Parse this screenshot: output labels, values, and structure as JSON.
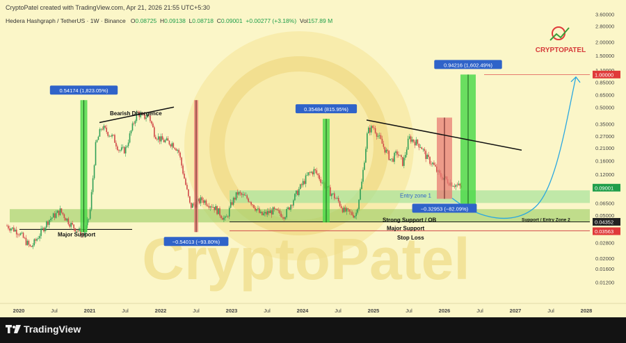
{
  "header": {
    "created_by": "CryptoPatel created with TradingView.com, Apr 21, 2026 21:55 UTC+5:30",
    "symbol": "Hedera Hashgraph / TetherUS · 1W · Binance",
    "open_label": "O",
    "open": "0.08725",
    "high_label": "H",
    "high": "0.09138",
    "low_label": "L",
    "low": "0.08718",
    "close_label": "C",
    "close": "0.09001",
    "change": "+0.00277 (+3.18%)",
    "volume_label": "Vol",
    "volume": "157.89 M"
  },
  "footer": {
    "brand": "TradingView"
  },
  "colors": {
    "background": "#fbf6c8",
    "bull": "#2e9e55",
    "bear": "#d04747",
    "green_box": "#46d846",
    "red_box": "#e87c74",
    "zone_green": "#a6e39a",
    "arrow": "#2aa7e0",
    "label_blue": "#2f63c9"
  },
  "chart_data": {
    "type": "candlestick",
    "title": "Hedera Hashgraph / TetherUS · 1W · Binance",
    "y_scale": "log",
    "ylim": [
      0.0085,
      3.8
    ],
    "x_range": [
      "2019-11",
      "2028-03"
    ],
    "x_ticks": [
      "2020",
      "Jul",
      "2021",
      "Jul",
      "2022",
      "Jul",
      "2023",
      "Jul",
      "2024",
      "Jul",
      "2025",
      "Jul",
      "2026",
      "Jul",
      "2027",
      "Jul",
      "2028"
    ],
    "y_ticks": [
      "3.60000",
      "2.80000",
      "2.00000",
      "1.50000",
      "1.10000",
      "0.85000",
      "0.65000",
      "0.50000",
      "0.35000",
      "0.27000",
      "0.21000",
      "0.16000",
      "0.12000",
      "0.09001",
      "0.06500",
      "0.05000",
      "0.04352",
      "0.03563",
      "0.02800",
      "0.02000",
      "0.01600",
      "0.01200"
    ],
    "price_tags": [
      {
        "label": "1.00000",
        "value": 1.0,
        "color": "#e03a3a"
      },
      {
        "label": "0.09001",
        "value": 0.09001,
        "color": "#1f9e4a"
      },
      {
        "label": "0.04352",
        "value": 0.04352,
        "color": "#222222"
      },
      {
        "label": "0.03563",
        "value": 0.03563,
        "color": "#e03a3a"
      }
    ],
    "price_path": [
      [
        "2019-11",
        0.04
      ],
      [
        "2020-01",
        0.035
      ],
      [
        "2020-03",
        0.025
      ],
      [
        "2020-04",
        0.03
      ],
      [
        "2020-06",
        0.045
      ],
      [
        "2020-08",
        0.055
      ],
      [
        "2020-10",
        0.04
      ],
      [
        "2020-12",
        0.033
      ],
      [
        "2021-01",
        0.05
      ],
      [
        "2021-02",
        0.22
      ],
      [
        "2021-03",
        0.33
      ],
      [
        "2021-05",
        0.26
      ],
      [
        "2021-06",
        0.2
      ],
      [
        "2021-07",
        0.2
      ],
      [
        "2021-08",
        0.3
      ],
      [
        "2021-09",
        0.45
      ],
      [
        "2021-10",
        0.4
      ],
      [
        "2021-11",
        0.42
      ],
      [
        "2021-12",
        0.28
      ],
      [
        "2022-01",
        0.25
      ],
      [
        "2022-03",
        0.23
      ],
      [
        "2022-04",
        0.2
      ],
      [
        "2022-05",
        0.11
      ],
      [
        "2022-06",
        0.06
      ],
      [
        "2022-08",
        0.07
      ],
      [
        "2022-10",
        0.06
      ],
      [
        "2022-12",
        0.045
      ],
      [
        "2023-01",
        0.065
      ],
      [
        "2023-02",
        0.08
      ],
      [
        "2023-04",
        0.07
      ],
      [
        "2023-06",
        0.05
      ],
      [
        "2023-08",
        0.055
      ],
      [
        "2023-10",
        0.05
      ],
      [
        "2023-12",
        0.08
      ],
      [
        "2024-02",
        0.12
      ],
      [
        "2024-03",
        0.13
      ],
      [
        "2024-05",
        0.09
      ],
      [
        "2024-07",
        0.068
      ],
      [
        "2024-08",
        0.055
      ],
      [
        "2024-10",
        0.05
      ],
      [
        "2024-11",
        0.1
      ],
      [
        "2024-12",
        0.3
      ],
      [
        "2025-01",
        0.33
      ],
      [
        "2025-03",
        0.2
      ],
      [
        "2025-04",
        0.16
      ],
      [
        "2025-05",
        0.19
      ],
      [
        "2025-06",
        0.15
      ],
      [
        "2025-07",
        0.26
      ],
      [
        "2025-08",
        0.24
      ],
      [
        "2025-09",
        0.22
      ],
      [
        "2025-10",
        0.17
      ],
      [
        "2025-11",
        0.15
      ],
      [
        "2025-12",
        0.12
      ],
      [
        "2026-02",
        0.1
      ],
      [
        "2026-04",
        0.09
      ]
    ],
    "green_bars": [
      {
        "date": "2020-12",
        "low": 0.035,
        "high": 0.58,
        "label": "0.54174 (1,823.05%)"
      },
      {
        "date": "2024-05",
        "low": 0.043,
        "high": 0.39,
        "label": "0.35484 (815.95%)"
      },
      {
        "date": "2026-05",
        "low": 0.058,
        "high": 1.0,
        "label": "0.94216 (1,602.49%)"
      }
    ],
    "red_bars": [
      {
        "date": "2022-07",
        "low": 0.035,
        "high": 0.58,
        "label": "−0.54013 (−93.80%)"
      },
      {
        "date": "2026-01",
        "low": 0.071,
        "high": 0.4,
        "label": "−0.32953 (−82.09%)"
      }
    ],
    "annotations": {
      "bearish_divergence": "Bearish Divergence",
      "major_support_left": "Major Support",
      "entry_zone_1": "Entry zone 1",
      "strong_support": "Strong Support / OB",
      "major_support": "Major Support",
      "stop_loss": "Stop Loss",
      "support_entry_zone_2": "Support / Entry Zone 2",
      "logo": "CRYPTOPATEL",
      "watermark": "CryptoPatel"
    },
    "zones": {
      "entry_zone_1": [
        0.065,
        0.085
      ],
      "strong_support": [
        0.043,
        0.057
      ],
      "major_support": 0.036,
      "stop_loss": 0.035
    }
  }
}
